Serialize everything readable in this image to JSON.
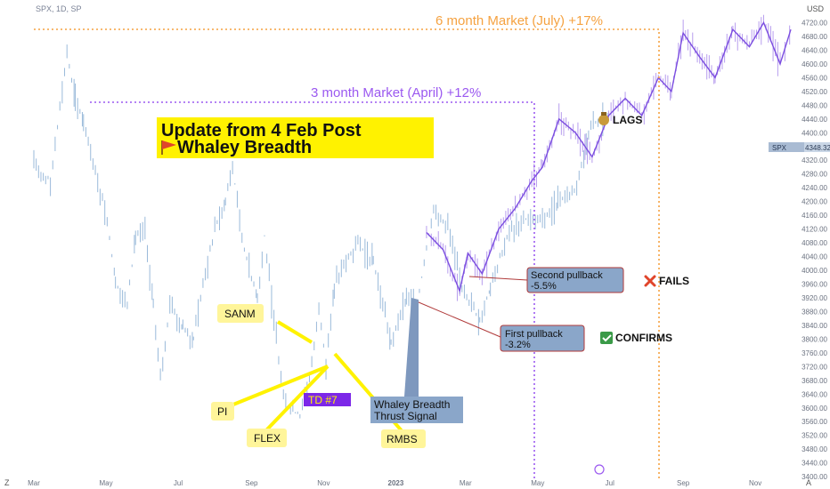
{
  "header": {
    "symbol_line": "SPX, 1D, SP"
  },
  "chart_data": {
    "type": "candlestick",
    "symbol": "SPX",
    "interval": "1D",
    "source": "SP",
    "y_axis": {
      "unit": "USD",
      "ticks": [
        "4720.00",
        "4680.00",
        "4640.00",
        "4600.00",
        "4560.00",
        "4520.00",
        "4480.00",
        "4440.00",
        "4400.00",
        "4360.00",
        "4320.00",
        "4280.00",
        "4240.00",
        "4200.00",
        "4160.00",
        "4120.00",
        "4080.00",
        "4040.00",
        "4000.00",
        "3960.00",
        "3920.00",
        "3880.00",
        "3840.00",
        "3800.00",
        "3760.00",
        "3720.00",
        "3680.00",
        "3640.00",
        "3600.00",
        "3560.00",
        "3520.00",
        "3480.00",
        "3440.00",
        "3400.00"
      ],
      "range": [
        3390,
        4760
      ]
    },
    "x_axis": {
      "ticks": [
        "Mar",
        "May",
        "Jul",
        "Sep",
        "Nov",
        "2023",
        "Mar",
        "May",
        "Jul",
        "Sep",
        "Nov"
      ],
      "range": [
        "2022-03-01",
        "2023-12-01"
      ]
    },
    "last_price": {
      "label": "SPX",
      "value": "4348.32"
    },
    "series": [
      {
        "name": "actual",
        "color": "#8fb2d6",
        "close": [
          [
            "2022-03-01",
            4300
          ],
          [
            "2022-03-15",
            4260
          ],
          [
            "2022-03-29",
            4630
          ],
          [
            "2022-04-05",
            4500
          ],
          [
            "2022-04-12",
            4430
          ],
          [
            "2022-04-22",
            4280
          ],
          [
            "2022-05-02",
            4150
          ],
          [
            "2022-05-09",
            3960
          ],
          [
            "2022-05-19",
            3900
          ],
          [
            "2022-05-26",
            4100
          ],
          [
            "2022-06-03",
            4110
          ],
          [
            "2022-06-10",
            3900
          ],
          [
            "2022-06-16",
            3680
          ],
          [
            "2022-06-24",
            3900
          ],
          [
            "2022-07-05",
            3830
          ],
          [
            "2022-07-14",
            3800
          ],
          [
            "2022-07-22",
            3960
          ],
          [
            "2022-08-01",
            4120
          ],
          [
            "2022-08-10",
            4200
          ],
          [
            "2022-08-16",
            4300
          ],
          [
            "2022-08-26",
            4060
          ],
          [
            "2022-09-06",
            3920
          ],
          [
            "2022-09-12",
            4100
          ],
          [
            "2022-09-20",
            3850
          ],
          [
            "2022-09-30",
            3600
          ],
          [
            "2022-10-12",
            3580
          ],
          [
            "2022-10-20",
            3680
          ],
          [
            "2022-10-28",
            3900
          ],
          [
            "2022-11-03",
            3720
          ],
          [
            "2022-11-10",
            3960
          ],
          [
            "2022-11-30",
            4080
          ],
          [
            "2022-12-13",
            4020
          ],
          [
            "2022-12-28",
            3790
          ],
          [
            "2023-01-10",
            3920
          ],
          [
            "2023-01-19",
            3900
          ],
          [
            "2023-02-02",
            4180
          ],
          [
            "2023-02-14",
            4130
          ],
          [
            "2023-02-24",
            3970
          ],
          [
            "2023-03-13",
            3850
          ],
          [
            "2023-03-22",
            3950
          ],
          [
            "2023-04-05",
            4100
          ],
          [
            "2023-04-19",
            4150
          ],
          [
            "2023-05-05",
            4140
          ],
          [
            "2023-05-18",
            4200
          ],
          [
            "2023-06-01",
            4230
          ],
          [
            "2023-06-15",
            4420
          ],
          [
            "2023-06-30",
            4450
          ]
        ]
      },
      {
        "name": "projection",
        "color": "#7b4de0",
        "close": [
          [
            "2023-01-27",
            4110
          ],
          [
            "2023-02-10",
            4060
          ],
          [
            "2023-02-24",
            3940
          ],
          [
            "2023-03-03",
            4050
          ],
          [
            "2023-03-15",
            3990
          ],
          [
            "2023-03-29",
            4120
          ],
          [
            "2023-04-12",
            4180
          ],
          [
            "2023-04-26",
            4260
          ],
          [
            "2023-05-05",
            4300
          ],
          [
            "2023-05-19",
            4440
          ],
          [
            "2023-06-02",
            4400
          ],
          [
            "2023-06-16",
            4330
          ],
          [
            "2023-06-30",
            4450
          ],
          [
            "2023-07-14",
            4500
          ],
          [
            "2023-07-28",
            4450
          ],
          [
            "2023-08-11",
            4560
          ],
          [
            "2023-08-22",
            4520
          ],
          [
            "2023-09-01",
            4690
          ],
          [
            "2023-09-15",
            4620
          ],
          [
            "2023-09-28",
            4560
          ],
          [
            "2023-10-13",
            4700
          ],
          [
            "2023-10-27",
            4650
          ],
          [
            "2023-11-08",
            4720
          ],
          [
            "2023-11-22",
            4600
          ],
          [
            "2023-12-01",
            4700
          ]
        ]
      }
    ],
    "annotations": {
      "title_line1": "Update from 4 Feb Post",
      "title_line2": "Whaley Breadth",
      "note_3m": "3 month Market (April) +12%",
      "note_6m": "6 month Market (July) +17%",
      "sanm": "SANM",
      "pi": "PI",
      "flex": "FLEX",
      "rmbs": "RMBS",
      "td": "TD #7",
      "whaley_line1": "Whaley Breadth",
      "whaley_line2": "Thrust Signal",
      "first_pullback_line1": "First pullback",
      "first_pullback_line2": "-3.2%",
      "second_pullback_line1": "Second pullback",
      "second_pullback_line2": "-5.5%",
      "lags": "LAGS",
      "fails": "FAILS",
      "confirms": "CONFIRMS"
    },
    "colors": {
      "accent_purple": "#9b59f0",
      "accent_orange": "#f5a241",
      "highlight_yellow": "#fff200",
      "box_blue": "#8aa6c9"
    },
    "icons": {
      "lags": "money-bag-icon",
      "fails": "red-x-icon",
      "confirms": "green-check-icon",
      "flag": "flag-icon"
    }
  }
}
